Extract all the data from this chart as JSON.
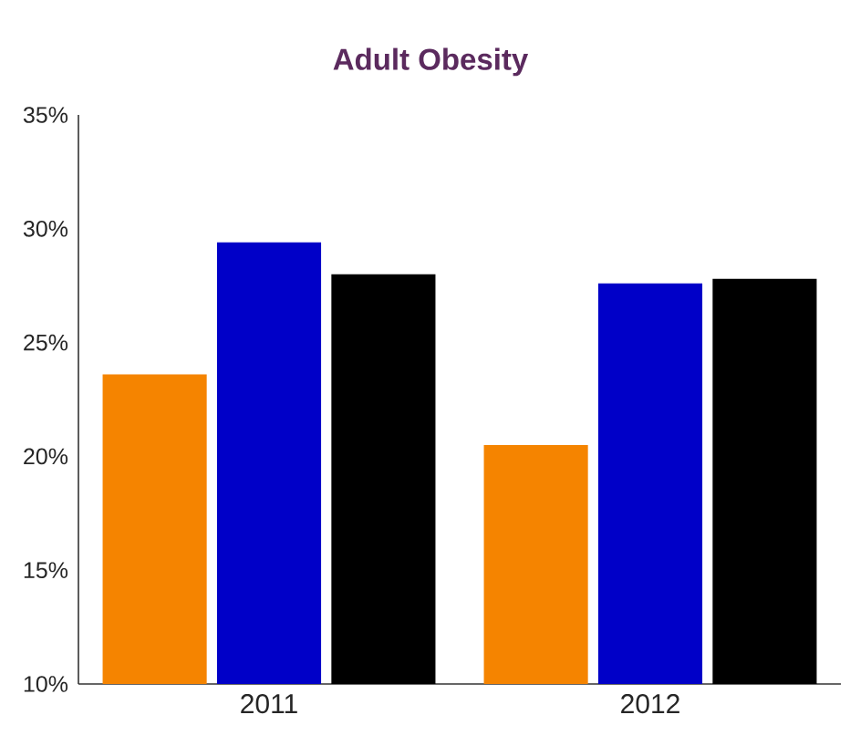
{
  "chart_data": {
    "type": "bar",
    "title": "Adult Obesity",
    "categories": [
      "2011",
      "2012"
    ],
    "series": [
      {
        "color": "#f58400",
        "values": [
          23.6,
          20.5
        ]
      },
      {
        "color": "#0000c8",
        "values": [
          29.4,
          27.6
        ]
      },
      {
        "color": "#000000",
        "values": [
          28.0,
          27.8
        ]
      }
    ],
    "ylim": [
      10,
      35
    ],
    "yticks": [
      {
        "value": 10,
        "label": "10%"
      },
      {
        "value": 15,
        "label": "15%"
      },
      {
        "value": 20,
        "label": "20%"
      },
      {
        "value": 25,
        "label": "25%"
      },
      {
        "value": 30,
        "label": "30%"
      },
      {
        "value": 35,
        "label": "35%"
      }
    ],
    "grid": false
  }
}
